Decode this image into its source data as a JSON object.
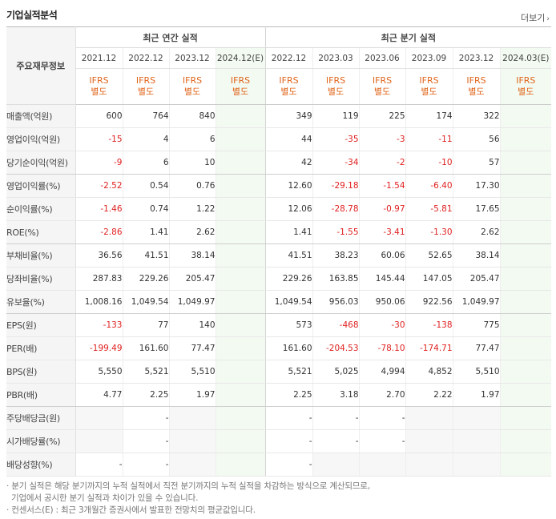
{
  "section_title": "기업실적분석",
  "more_label": "더보기",
  "more_icon": "chevron-right-icon",
  "row_header_label": "주요재무정보",
  "groups": [
    "최근 연간 실적",
    "최근 분기 실적"
  ],
  "periods": [
    "2021.12",
    "2022.12",
    "2023.12",
    "2024.12(E)",
    "2022.12",
    "2023.03",
    "2023.06",
    "2023.09",
    "2023.12",
    "2024.03(E)"
  ],
  "ifrs_label": [
    "IFRS",
    "별도"
  ],
  "rows": [
    {
      "label": "매출액(억원)",
      "values": [
        "600",
        "764",
        "840",
        "",
        "349",
        "119",
        "225",
        "174",
        "322",
        ""
      ]
    },
    {
      "label": "영업이익(억원)",
      "values": [
        "-15",
        "4",
        "6",
        "",
        "44",
        "-35",
        "-3",
        "-11",
        "56",
        ""
      ]
    },
    {
      "label": "당기순이익(억원)",
      "values": [
        "-9",
        "6",
        "10",
        "",
        "42",
        "-34",
        "-2",
        "-10",
        "57",
        ""
      ]
    },
    {
      "label": "영업이익률(%)",
      "values": [
        "-2.52",
        "0.54",
        "0.76",
        "",
        "12.60",
        "-29.18",
        "-1.54",
        "-6.40",
        "17.30",
        ""
      ]
    },
    {
      "label": "순이익률(%)",
      "values": [
        "-1.46",
        "0.74",
        "1.22",
        "",
        "12.06",
        "-28.78",
        "-0.97",
        "-5.81",
        "17.65",
        ""
      ]
    },
    {
      "label": "ROE(%)",
      "values": [
        "-2.86",
        "1.41",
        "2.62",
        "",
        "1.41",
        "-1.55",
        "-3.41",
        "-1.30",
        "2.62",
        ""
      ]
    },
    {
      "label": "부채비율(%)",
      "values": [
        "36.56",
        "41.51",
        "38.14",
        "",
        "41.51",
        "38.23",
        "60.06",
        "52.65",
        "38.14",
        ""
      ]
    },
    {
      "label": "당좌비율(%)",
      "values": [
        "287.83",
        "229.26",
        "205.47",
        "",
        "229.26",
        "163.85",
        "145.44",
        "147.05",
        "205.47",
        ""
      ]
    },
    {
      "label": "유보율(%)",
      "values": [
        "1,008.16",
        "1,049.54",
        "1,049.97",
        "",
        "1,049.54",
        "956.03",
        "950.06",
        "922.56",
        "1,049.97",
        ""
      ]
    },
    {
      "label": "EPS(원)",
      "values": [
        "-133",
        "77",
        "140",
        "",
        "573",
        "-468",
        "-30",
        "-138",
        "775",
        ""
      ]
    },
    {
      "label": "PER(배)",
      "values": [
        "-199.49",
        "161.60",
        "77.47",
        "",
        "161.60",
        "-204.53",
        "-78.10",
        "-174.71",
        "77.47",
        ""
      ]
    },
    {
      "label": "BPS(원)",
      "values": [
        "5,550",
        "5,521",
        "5,510",
        "",
        "5,521",
        "5,025",
        "4,994",
        "4,852",
        "5,510",
        ""
      ]
    },
    {
      "label": "PBR(배)",
      "values": [
        "4.77",
        "2.25",
        "1.97",
        "",
        "2.25",
        "3.18",
        "2.70",
        "2.22",
        "1.97",
        ""
      ]
    },
    {
      "label": "주당배당금(원)",
      "values": [
        "",
        "-",
        "",
        "",
        "-",
        "-",
        "-",
        "",
        "",
        ""
      ]
    },
    {
      "label": "시가배당률(%)",
      "values": [
        "",
        "-",
        "",
        "",
        "-",
        "-",
        "-",
        "",
        "",
        ""
      ]
    },
    {
      "label": "배당성향(%)",
      "values": [
        "-",
        "-",
        "",
        "",
        "-",
        "",
        "",
        "",
        "",
        ""
      ]
    }
  ],
  "footnotes": [
    "· 분기 실적은 해당 분기까지의 누적 실적에서 직전 분기까지의 누적 실적을 차감하는 방식으로 계산되므로,",
    "  기업에서 공시한 분기 실적과 차이가 있을 수 있습니다.",
    "· 컨센서스(E) : 최근 3개월간 증권사에서 발표한 전망치의 평균값입니다."
  ]
}
